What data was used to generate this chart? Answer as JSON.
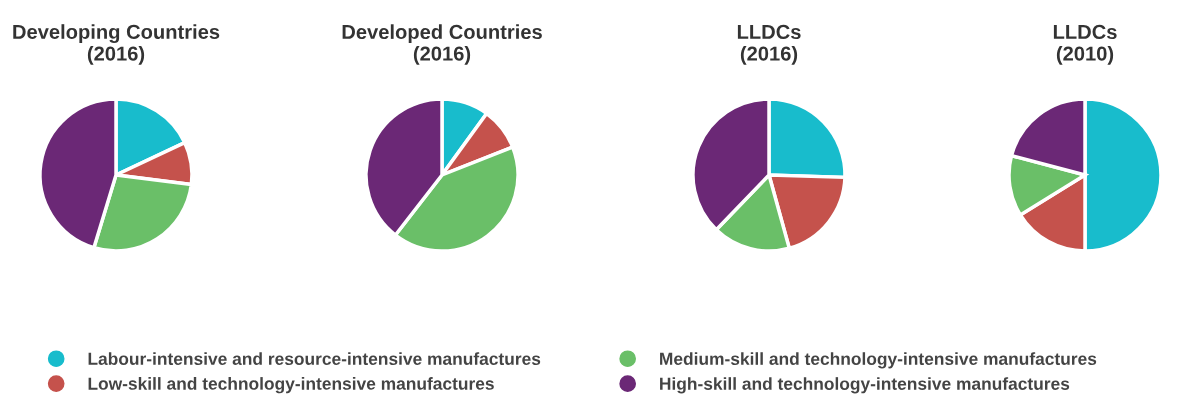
{
  "chart_data": [
    {
      "type": "pie",
      "title": "Developing Countries\n(2016)",
      "legend": "bottom",
      "categories": [
        "Labour-intensive and resource-intensive manufactures",
        "Low-skill and technology-intensive manufactures",
        "Medium-skill and technology-intensive manufactures",
        "High-skill and technology-intensive manufactures"
      ],
      "values": [
        18,
        9,
        27.7,
        45.3
      ],
      "colors": [
        "#18bccc",
        "#c5524c",
        "#6abf68",
        "#6b2876"
      ]
    },
    {
      "type": "pie",
      "title": "Developed Countries\n(2016)",
      "categories": [
        null,
        null,
        null,
        null
      ],
      "values": [
        10,
        9,
        41.5,
        39.5
      ],
      "colors": [
        "#18bccc",
        "#c5524c",
        "#6abf68",
        "#6b2876"
      ]
    },
    {
      "type": "pie",
      "title": "LLDCs\n(2016)",
      "categories": [
        null,
        null,
        null,
        null
      ],
      "values": [
        25.5,
        20.2,
        16.5,
        37.8
      ],
      "colors": [
        "#18bccc",
        "#c5524c",
        "#6abf68",
        "#6b2876"
      ]
    },
    {
      "type": "pie",
      "title": "LLDCs\n(2010)",
      "categories": [
        null,
        null,
        null,
        null
      ],
      "values": [
        50,
        16.2,
        12.9,
        20.9
      ],
      "colors": [
        "#18bccc",
        "#c5524c",
        "#6abf68",
        "#6b2876"
      ]
    }
  ]
}
